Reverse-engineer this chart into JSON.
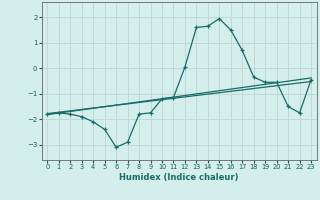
{
  "xlabel": "Humidex (Indice chaleur)",
  "bg_color": "#d4eeeb",
  "grid_color": "#c2d8d5",
  "line_color": "#1a6b6b",
  "xlim": [
    -0.5,
    23.5
  ],
  "ylim": [
    -3.6,
    2.6
  ],
  "xticks": [
    0,
    1,
    2,
    3,
    4,
    5,
    6,
    7,
    8,
    9,
    10,
    11,
    12,
    13,
    14,
    15,
    16,
    17,
    18,
    19,
    20,
    21,
    22,
    23
  ],
  "yticks": [
    -3,
    -2,
    -1,
    0,
    1,
    2
  ],
  "curve_x": [
    0,
    1,
    2,
    3,
    4,
    5,
    6,
    7,
    8,
    9,
    10,
    11,
    12,
    13,
    14,
    15,
    16,
    17,
    18,
    19,
    20,
    21,
    22,
    23
  ],
  "curve_y": [
    -1.8,
    -1.75,
    -1.8,
    -1.9,
    -2.1,
    -2.4,
    -3.1,
    -2.9,
    -1.8,
    -1.75,
    -1.2,
    -1.15,
    0.05,
    1.6,
    1.65,
    1.95,
    1.5,
    0.7,
    -0.35,
    -0.55,
    -0.55,
    -1.5,
    -1.75,
    -0.45
  ],
  "reg_line1_x": [
    0,
    23
  ],
  "reg_line1_y": [
    -1.82,
    -0.38
  ],
  "reg_line2_x": [
    0,
    23
  ],
  "reg_line2_y": [
    -1.78,
    -0.52
  ]
}
